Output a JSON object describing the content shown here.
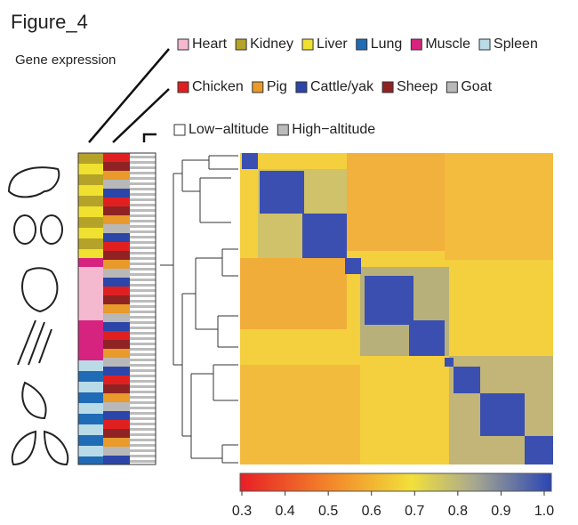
{
  "header": {
    "title": "Figure_4",
    "subtitle": "Gene expression"
  },
  "legends": [
    {
      "items": [
        {
          "label": "Heart",
          "color": "#f4b8cf"
        },
        {
          "label": "Kidney",
          "color": "#b5a229"
        },
        {
          "label": "Liver",
          "color": "#f0e030"
        },
        {
          "label": "Lung",
          "color": "#1f6bb5"
        },
        {
          "label": "Muscle",
          "color": "#d6237f"
        },
        {
          "label": "Spleen",
          "color": "#b9dbe8"
        }
      ]
    },
    {
      "items": [
        {
          "label": "Chicken",
          "color": "#e02020"
        },
        {
          "label": "Pig",
          "color": "#e89a2a"
        },
        {
          "label": "Cattle/yak",
          "color": "#2b45a8"
        },
        {
          "label": "Sheep",
          "color": "#8f2323"
        },
        {
          "label": "Goat",
          "color": "#b8b8b8"
        }
      ]
    },
    {
      "items": [
        {
          "label": "Low−altitude",
          "color": "#ffffff"
        },
        {
          "label": "High−altitude",
          "color": "#bbbbbb"
        }
      ]
    }
  ],
  "colorbar": {
    "range": [
      0.3,
      1.0
    ],
    "ticks": [
      0.3,
      0.4,
      0.5,
      0.6,
      0.7,
      0.8,
      0.9,
      {
        "value": 1,
        "label": "1.0"
      }
    ]
  }
}
